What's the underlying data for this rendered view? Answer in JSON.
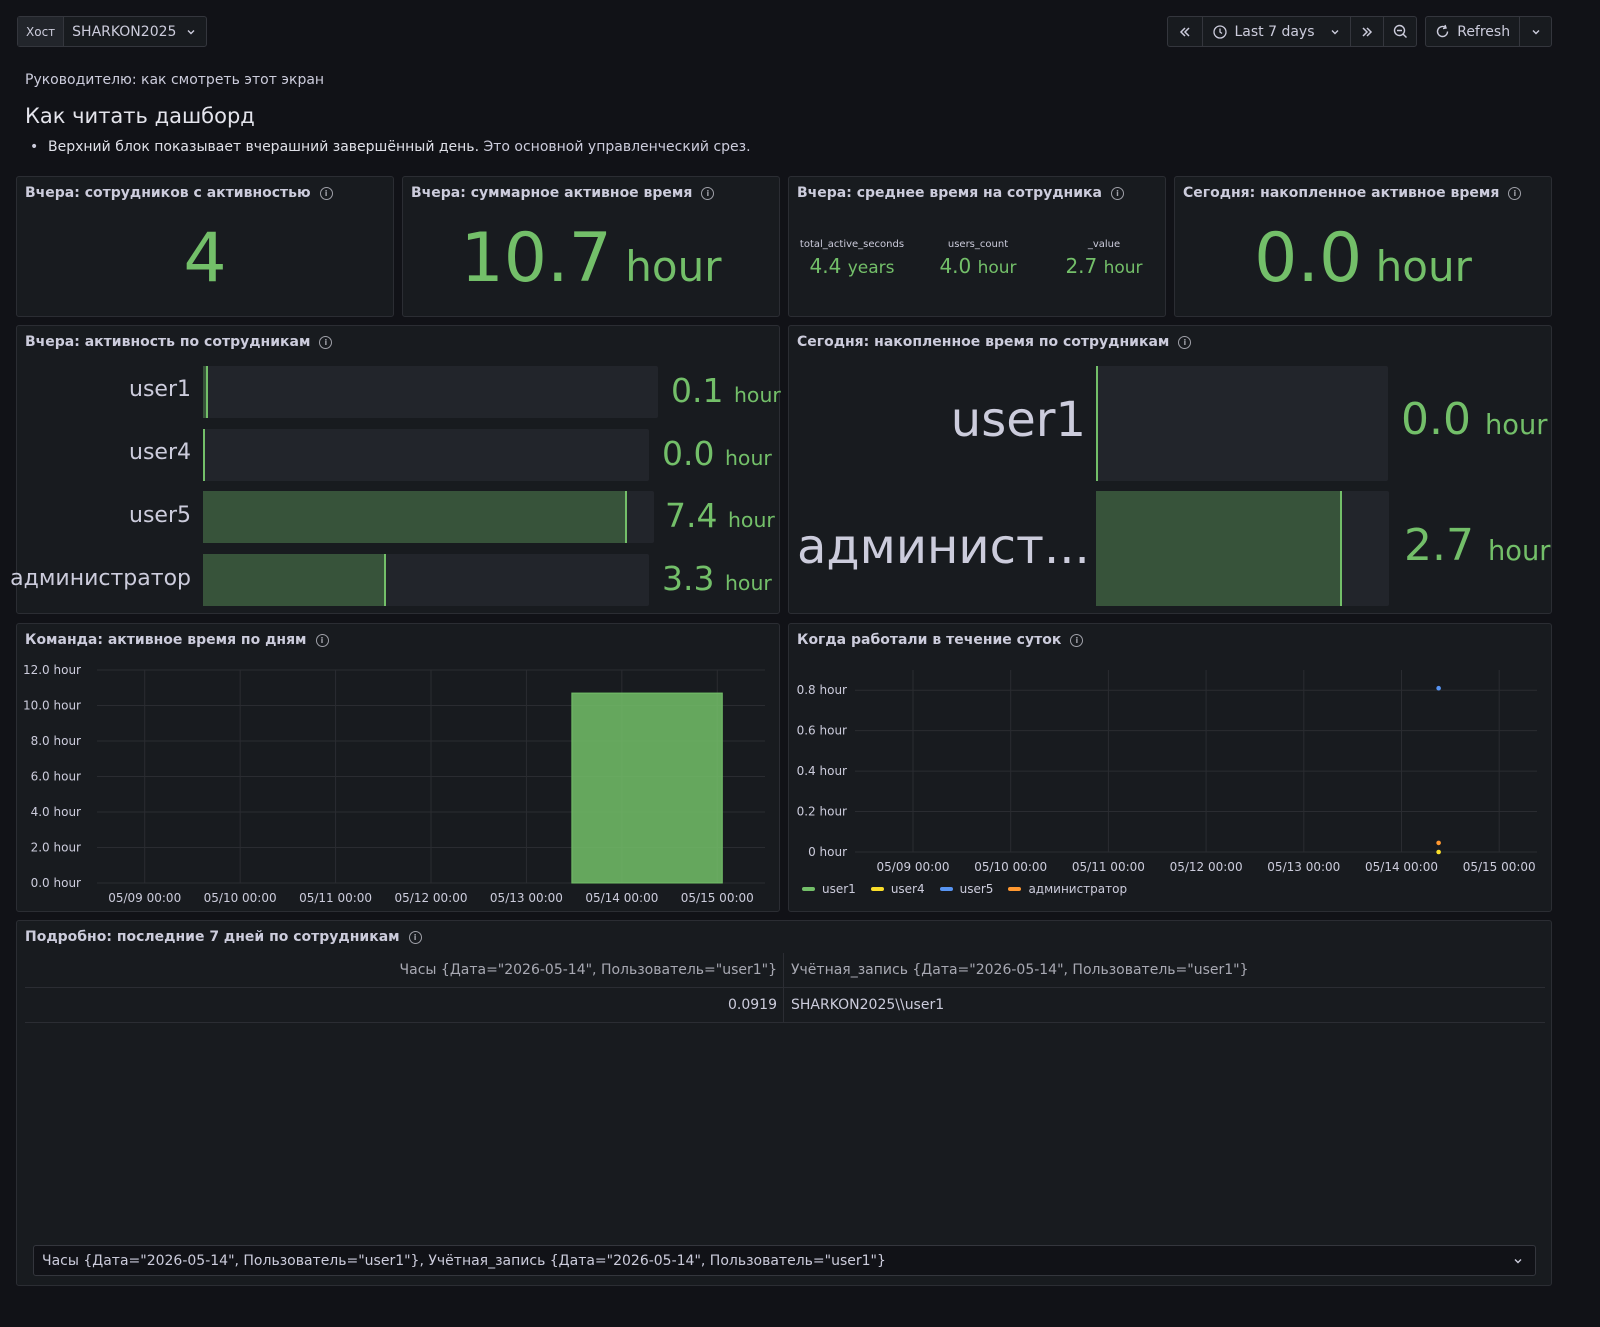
{
  "toolbar": {
    "variable_label": "Хост",
    "variable_value": "SHARKON2025",
    "time_range": "Last 7 days",
    "refresh_label": "Refresh"
  },
  "intro": {
    "subtitle": "Руководителю: как смотреть этот экран",
    "heading": "Как читать дашборд",
    "bullet_bold": "Верхний блок показывает вчерашний завершённый день.",
    "bullet_rest": " Это основной управленческий срез."
  },
  "stat_users": {
    "title": "Вчера: сотрудников с активностью",
    "value": "4"
  },
  "stat_total": {
    "title": "Вчера: суммарное активное время",
    "value": "10.7",
    "unit": "hour"
  },
  "stat_avg": {
    "title": "Вчера: среднее время на сотрудника",
    "fields": [
      {
        "label": "total_active_seconds",
        "value": "4.4",
        "unit": "years"
      },
      {
        "label": "users_count",
        "value": "4.0",
        "unit": "hour"
      },
      {
        "label": "_value",
        "value": "2.7",
        "unit": "hour"
      }
    ]
  },
  "stat_today": {
    "title": "Сегодня: накопленное активное время",
    "value": "0.0",
    "unit": "hour"
  },
  "bars_yesterday": {
    "title": "Вчера: активность по сотрудникам",
    "items": [
      {
        "label": "user1",
        "value": "0.1",
        "unit": "hour",
        "fraction": 0.01
      },
      {
        "label": "user4",
        "value": "0.0",
        "unit": "hour",
        "fraction": 0.0
      },
      {
        "label": "user5",
        "value": "7.4",
        "unit": "hour",
        "fraction": 0.94
      },
      {
        "label": "администратор",
        "value": "3.3",
        "unit": "hour",
        "fraction": 0.41
      }
    ]
  },
  "bars_today": {
    "title": "Сегодня: накопленное время по сотрудникам",
    "items": [
      {
        "label": "user1",
        "value": "0.0",
        "unit": "hour",
        "fraction": 0.0
      },
      {
        "label": "админист...",
        "value": "2.7",
        "unit": "hour",
        "fraction": 0.84
      }
    ]
  },
  "chart_data": [
    {
      "type": "bar",
      "title": "Команда: активное время по дням",
      "x": [
        "05/09 00:00",
        "05/10 00:00",
        "05/11 00:00",
        "05/12 00:00",
        "05/13 00:00",
        "05/14 00:00",
        "05/15 00:00"
      ],
      "y_ticks": [
        "0.0 hour",
        "2.0 hour",
        "4.0 hour",
        "6.0 hour",
        "8.0 hour",
        "10.0 hour",
        "12.0 hour"
      ],
      "ylim": [
        0,
        12
      ],
      "series": [
        {
          "values": [
            0,
            0,
            0,
            0,
            0,
            10.7,
            0
          ],
          "color": "#73bf69"
        }
      ],
      "grid": true
    },
    {
      "type": "scatter",
      "title": "Когда работали в течение суток",
      "x": [
        "05/09 00:00",
        "05/10 00:00",
        "05/11 00:00",
        "05/12 00:00",
        "05/13 00:00",
        "05/14 00:00",
        "05/15 00:00"
      ],
      "y_ticks": [
        "0 hour",
        "0.2 hour",
        "0.4 hour",
        "0.6 hour",
        "0.8 hour"
      ],
      "ylim": [
        0,
        0.9
      ],
      "series": [
        {
          "name": "user1",
          "color": "#73bf69",
          "points": []
        },
        {
          "name": "user4",
          "color": "#fade2a",
          "points": [
            [
              5.38,
              0.0
            ]
          ]
        },
        {
          "name": "user5",
          "color": "#5794f2",
          "points": [
            [
              5.38,
              0.81
            ]
          ]
        },
        {
          "name": "администратор",
          "color": "#ff9830",
          "points": [
            [
              5.38,
              0.045
            ]
          ]
        }
      ],
      "legend": "bottom-left",
      "grid": true
    }
  ],
  "table": {
    "title": "Подробно: последние 7 дней по сотрудникам",
    "columns": [
      "Часы {Дата=\"2026-05-14\", Пользователь=\"user1\"}",
      "Учётная_запись {Дата=\"2026-05-14\", Пользователь=\"user1\"}"
    ],
    "rows": [
      [
        "0.0919",
        "SHARKON2025\\\\user1"
      ]
    ],
    "frame_select": "Часы {Дата=\"2026-05-14\", Пользователь=\"user1\"}, Учётная_запись {Дата=\"2026-05-14\", Пользователь=\"user1\"}"
  }
}
